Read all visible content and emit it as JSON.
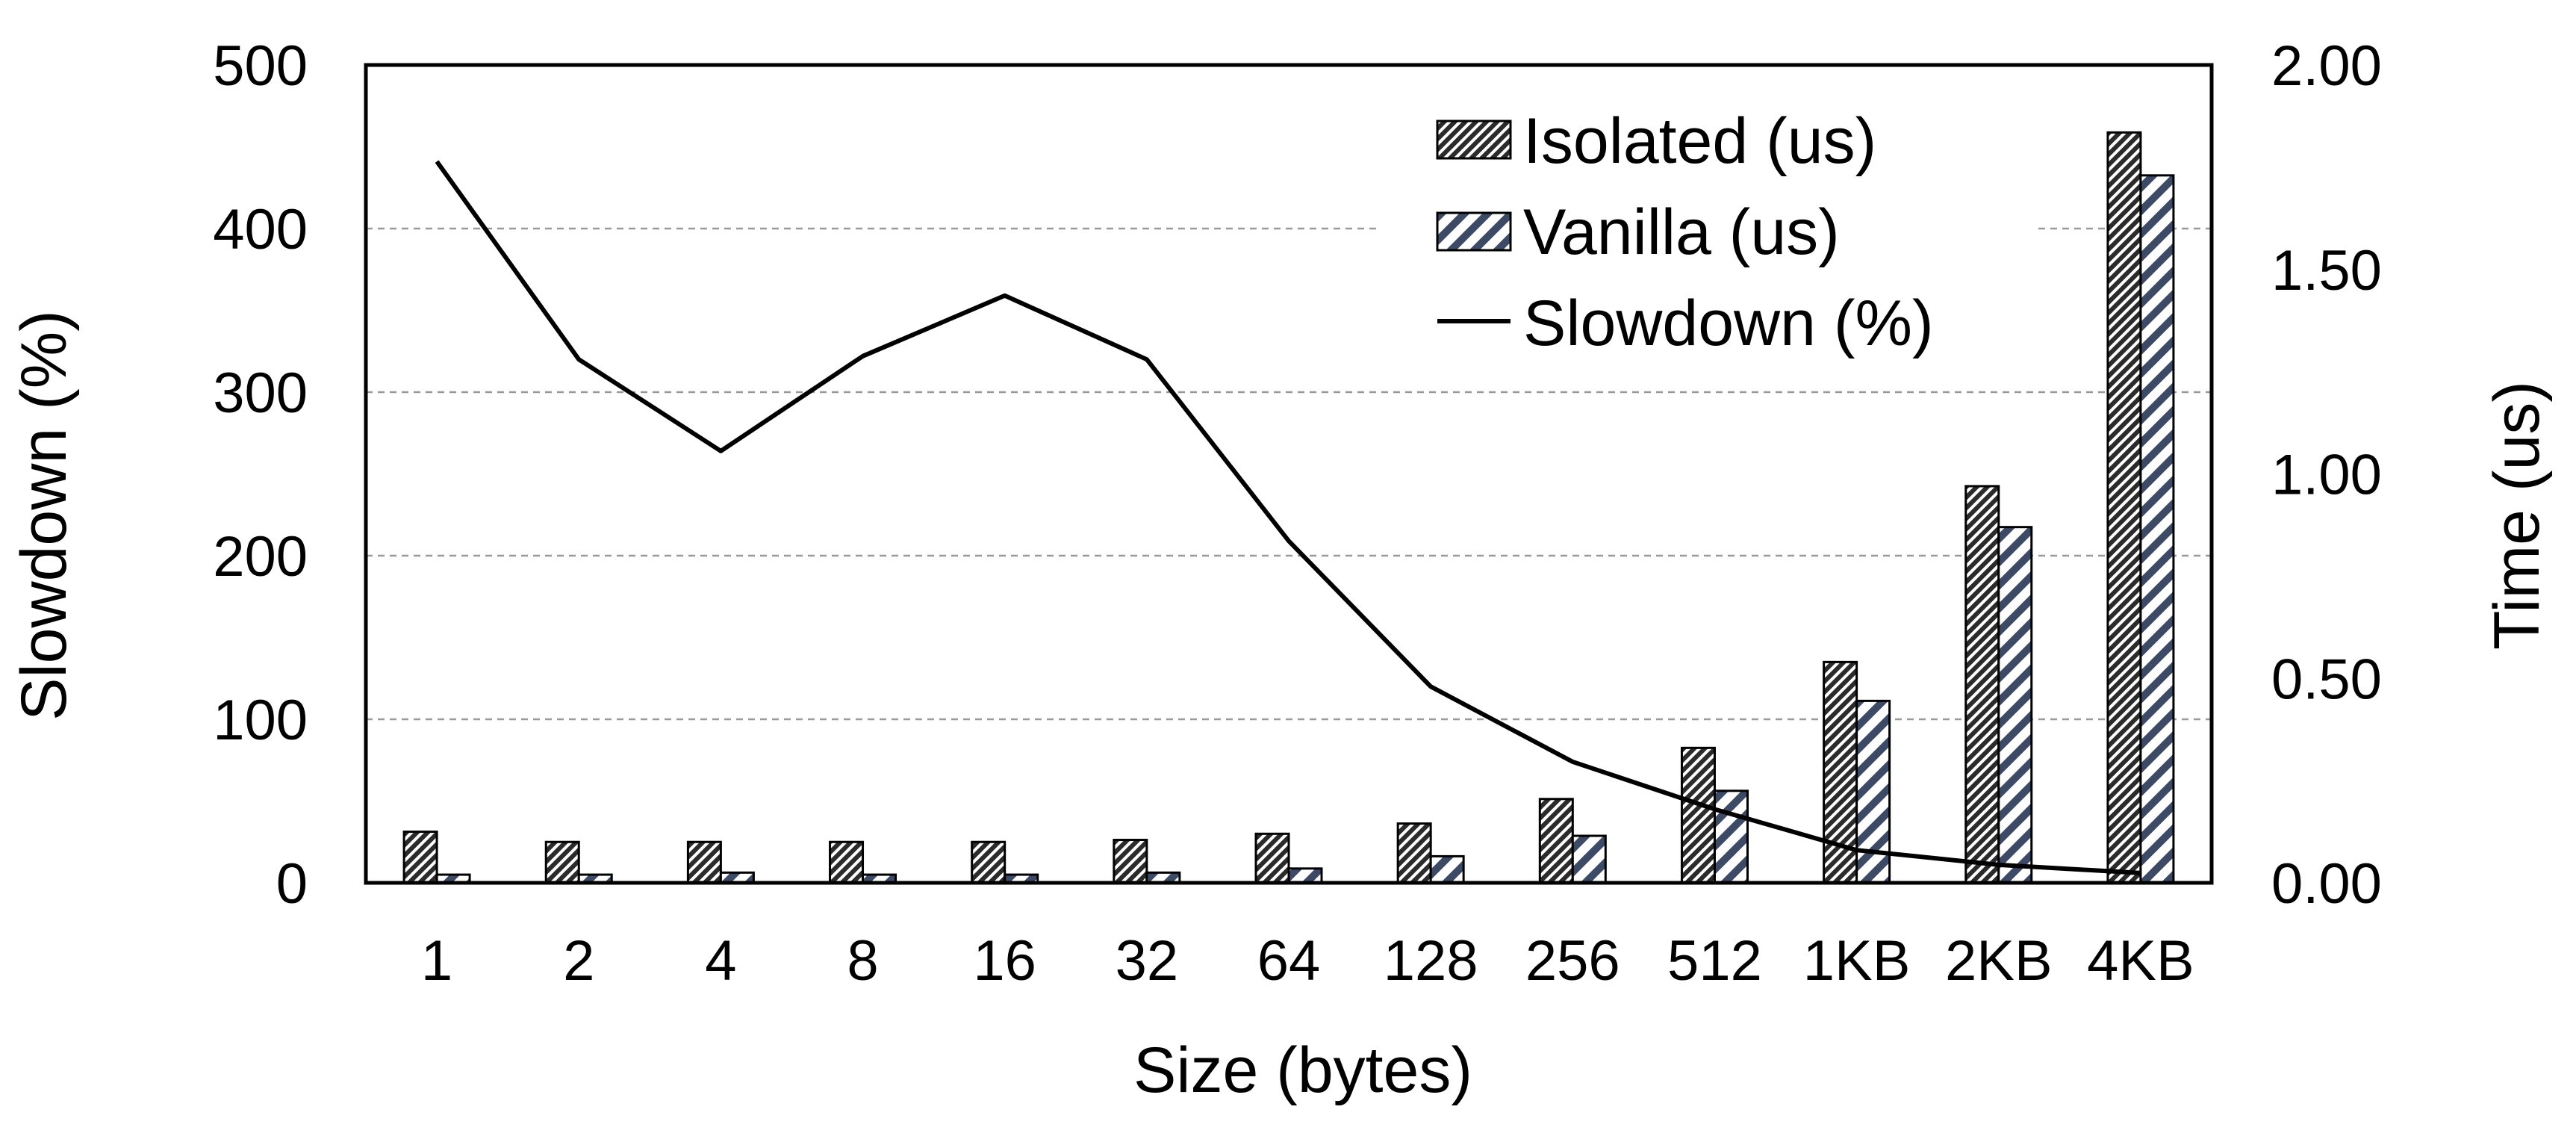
{
  "chart_data": {
    "type": "bar",
    "title": "",
    "xlabel": "Size (bytes)",
    "ylabel_left": "Slowdown (%)",
    "ylabel_right": "Time (us)",
    "categories": [
      "1",
      "2",
      "4",
      "8",
      "16",
      "32",
      "64",
      "128",
      "256",
      "512",
      "1KB",
      "2KB",
      "4KB"
    ],
    "ylim_left": [
      0,
      500
    ],
    "yticks_left": [
      "0",
      "100",
      "200",
      "300",
      "400",
      "500"
    ],
    "ylim_right": [
      0,
      2.0
    ],
    "yticks_right": [
      "0.00",
      "0.50",
      "1.00",
      "1.50",
      "2.00"
    ],
    "grid": "horizontal dashed",
    "legend_position": "top-right",
    "series": [
      {
        "name": "Isolated (us)",
        "kind": "bar",
        "axis": "right",
        "pattern": "dense-diagonal-hatch",
        "values": [
          0.125,
          0.1,
          0.1,
          0.1,
          0.1,
          0.105,
          0.12,
          0.145,
          0.205,
          0.33,
          0.54,
          0.97,
          1.835
        ]
      },
      {
        "name": "Vanilla (us)",
        "kind": "bar",
        "axis": "right",
        "pattern": "wide-diagonal-stripe",
        "values": [
          0.02,
          0.02,
          0.025,
          0.02,
          0.02,
          0.025,
          0.035,
          0.065,
          0.115,
          0.225,
          0.445,
          0.87,
          1.73
        ]
      },
      {
        "name": "Slowdown (%)",
        "kind": "line",
        "axis": "left",
        "values": [
          441,
          320,
          264,
          322,
          359,
          320,
          209,
          120,
          74,
          45,
          20,
          11,
          6
        ]
      }
    ],
    "colors": {
      "isolated_fill": "#2b2b2b",
      "vanilla_fill": "#3d4a66",
      "line": "#000000",
      "grid": "#9a9a9a"
    }
  }
}
